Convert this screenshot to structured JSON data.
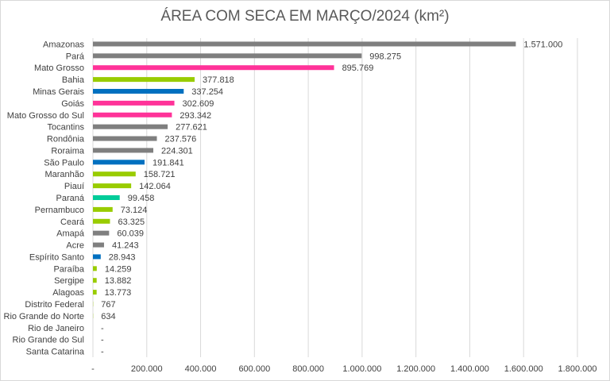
{
  "chart_data": {
    "type": "bar",
    "orientation": "horizontal",
    "title": "ÁREA COM SECA EM MARÇO/2024 (km²)",
    "xlim": [
      0,
      1800000
    ],
    "x_ticks": [
      0,
      200000,
      400000,
      600000,
      800000,
      1000000,
      1200000,
      1400000,
      1600000,
      1800000
    ],
    "x_tick_labels": [
      "-",
      "200.000",
      "400.000",
      "600.000",
      "800.000",
      "1.000.000",
      "1.200.000",
      "1.400.000",
      "1.600.000",
      "1.800.000"
    ],
    "grid": "vertical",
    "colors": {
      "gray": "#7f7f7f",
      "pink": "#ff3399",
      "green": "#99cc00",
      "blue": "#0070c0",
      "teal": "#00cc99"
    },
    "categories": [
      "Amazonas",
      "Pará",
      "Mato Grosso",
      "Bahia",
      "Minas Gerais",
      "Goiás",
      "Mato Grosso do Sul",
      "Tocantins",
      "Rondônia",
      "Roraima",
      "São Paulo",
      "Maranhão",
      "Piauí",
      "Paraná",
      "Pernambuco",
      "Ceará",
      "Amapá",
      "Acre",
      "Espírito Santo",
      "Paraíba",
      "Sergipe",
      "Alagoas",
      "Distrito Federal",
      "Rio Grande do Norte",
      "Rio de Janeiro",
      "Rio Grande do Sul",
      "Santa Catarina"
    ],
    "values": [
      1571000,
      998275,
      895769,
      377818,
      337254,
      302609,
      293342,
      277621,
      237576,
      224301,
      191841,
      158721,
      142064,
      99458,
      73124,
      63325,
      60039,
      41243,
      28943,
      14259,
      13882,
      13773,
      767,
      634,
      0,
      0,
      0
    ],
    "data_labels": [
      "1.571.000",
      "998.275",
      "895.769",
      "377.818",
      "337.254",
      "302.609",
      "293.342",
      "277.621",
      "237.576",
      "224.301",
      "191.841",
      "158.721",
      "142.064",
      "99.458",
      "73.124",
      "63.325",
      "60.039",
      "41.243",
      "28.943",
      "14.259",
      "13.882",
      "13.773",
      "767",
      "634",
      "-",
      "-",
      "-"
    ],
    "bar_colors": [
      "gray",
      "gray",
      "pink",
      "green",
      "blue",
      "pink",
      "pink",
      "gray",
      "gray",
      "gray",
      "blue",
      "green",
      "green",
      "teal",
      "green",
      "green",
      "gray",
      "gray",
      "blue",
      "green",
      "green",
      "green",
      "green",
      "green",
      "gray",
      "gray",
      "gray"
    ]
  }
}
